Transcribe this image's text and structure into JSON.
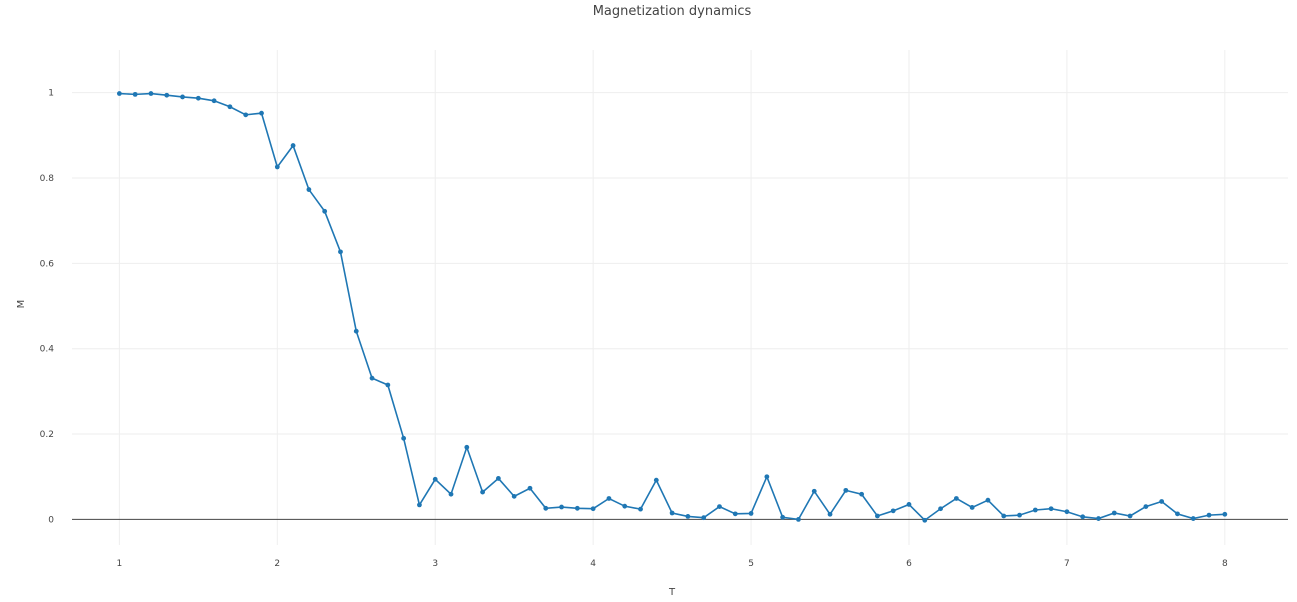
{
  "chart_data": {
    "type": "line",
    "title": "Magnetization dynamics",
    "xlabel": "T",
    "ylabel": "M",
    "xlim": [
      0.7,
      8.4
    ],
    "ylim": [
      -0.06,
      1.1
    ],
    "xticks": [
      1,
      2,
      3,
      4,
      5,
      6,
      7,
      8
    ],
    "yticks": [
      0,
      0.2,
      0.4,
      0.6,
      0.8,
      1
    ],
    "ytick_labels": [
      "0",
      "0.2",
      "0.4",
      "0.6",
      "0.8",
      "1"
    ],
    "grid": true,
    "legend": "none",
    "colors": {
      "series": "#1f77b4",
      "grid": "#eeeeee",
      "zeroline": "#444444"
    },
    "series": [
      {
        "mode": "lines+markers",
        "x": [
          1.0,
          1.1,
          1.2,
          1.3,
          1.4,
          1.5,
          1.6,
          1.7,
          1.8,
          1.9,
          2.0,
          2.1,
          2.2,
          2.3,
          2.4,
          2.5,
          2.6,
          2.7,
          2.8,
          2.9,
          3.0,
          3.1,
          3.2,
          3.3,
          3.4,
          3.5,
          3.6,
          3.7,
          3.8,
          3.9,
          4.0,
          4.1,
          4.2,
          4.3,
          4.4,
          4.5,
          4.6,
          4.7,
          4.8,
          4.9,
          5.0,
          5.1,
          5.2,
          5.3,
          5.4,
          5.5,
          5.6,
          5.7,
          5.8,
          5.9,
          6.0,
          6.1,
          6.2,
          6.3,
          6.4,
          6.5,
          6.6,
          6.7,
          6.8,
          6.9,
          7.0,
          7.1,
          7.2,
          7.3,
          7.4,
          7.5,
          7.6,
          7.7,
          7.8,
          7.9,
          8.0
        ],
        "y": [
          0.998,
          0.996,
          0.998,
          0.994,
          0.99,
          0.987,
          0.981,
          0.967,
          0.948,
          0.952,
          0.826,
          0.876,
          0.773,
          0.722,
          0.627,
          0.441,
          0.331,
          0.315,
          0.19,
          0.034,
          0.094,
          0.059,
          0.169,
          0.064,
          0.096,
          0.054,
          0.073,
          0.026,
          0.029,
          0.026,
          0.025,
          0.049,
          0.031,
          0.024,
          0.092,
          0.015,
          0.007,
          0.004,
          0.03,
          0.013,
          0.014,
          0.1,
          0.005,
          0.0,
          0.066,
          0.012,
          0.068,
          0.059,
          0.008,
          0.02,
          0.035,
          -0.002,
          0.025,
          0.049,
          0.028,
          0.045,
          0.008,
          0.01,
          0.022,
          0.025,
          0.018,
          0.006,
          0.002,
          0.015,
          0.008,
          0.03,
          0.042,
          0.013,
          0.002,
          0.01,
          0.012
        ]
      }
    ]
  }
}
